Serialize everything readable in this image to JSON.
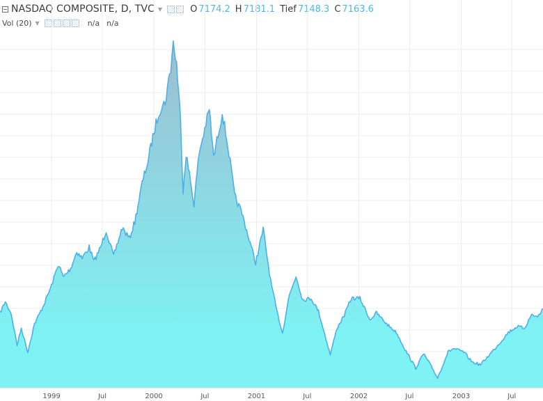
{
  "legend": {
    "symbol": "NASDAQ COMPOSITE, D, TVC",
    "ohlc": [
      {
        "label": "O",
        "value": "7174.2"
      },
      {
        "label": "H",
        "value": "7181.1"
      },
      {
        "label": "Tief",
        "value": "7148.3"
      },
      {
        "label": "C",
        "value": "7163.6"
      }
    ],
    "volume_title": "Vol (20)",
    "volume_values": [
      "n/a",
      "n/a"
    ]
  },
  "colors": {
    "line": "#4cb0ea",
    "fill_top": "#9cc0d2",
    "fill_bottom": "#7ef2f4",
    "grid": "#ececec",
    "text": "#555555"
  },
  "chart_data": {
    "type": "area",
    "title": "NASDAQ COMPOSITE, D, TVC",
    "xlabel": "",
    "ylabel": "",
    "x_tick_labels": [
      "1999",
      "Jul",
      "2000",
      "Jul",
      "2001",
      "Jul",
      "2002",
      "Jul",
      "2003",
      "Jul"
    ],
    "x_tick_dates": [
      "1999-01-01",
      "1999-07-01",
      "2000-01-01",
      "2000-07-01",
      "2001-01-01",
      "2001-07-01",
      "2002-01-01",
      "2002-07-01",
      "2003-01-01",
      "2003-07-01"
    ],
    "x_range": [
      "1998-07-01",
      "2003-10-20"
    ],
    "y_range": [
      1000,
      5200
    ],
    "grid": true,
    "series": [
      {
        "points": [
          [
            "1998-07-01",
            1880
          ],
          [
            "1998-07-20",
            2010
          ],
          [
            "1998-08-10",
            1870
          ],
          [
            "1998-08-31",
            1500
          ],
          [
            "1998-09-15",
            1700
          ],
          [
            "1998-10-08",
            1420
          ],
          [
            "1998-11-01",
            1750
          ],
          [
            "1998-12-01",
            1950
          ],
          [
            "1999-01-01",
            2200
          ],
          [
            "1999-01-25",
            2450
          ],
          [
            "1999-02-12",
            2300
          ],
          [
            "1999-03-10",
            2400
          ],
          [
            "1999-04-01",
            2600
          ],
          [
            "1999-04-20",
            2520
          ],
          [
            "1999-05-15",
            2650
          ],
          [
            "1999-06-01",
            2480
          ],
          [
            "1999-06-25",
            2650
          ],
          [
            "1999-07-15",
            2850
          ],
          [
            "1999-08-10",
            2540
          ],
          [
            "1999-09-10",
            2880
          ],
          [
            "1999-10-05",
            2750
          ],
          [
            "1999-10-25",
            2950
          ],
          [
            "1999-11-20",
            3400
          ],
          [
            "1999-12-10",
            3650
          ],
          [
            "2000-01-01",
            4000
          ],
          [
            "2000-01-20",
            4250
          ],
          [
            "2000-02-10",
            4350
          ],
          [
            "2000-03-01",
            4750
          ],
          [
            "2000-03-10",
            5048
          ],
          [
            "2000-03-22",
            4800
          ],
          [
            "2000-04-05",
            4150
          ],
          [
            "2000-04-14",
            3320
          ],
          [
            "2000-04-25",
            3750
          ],
          [
            "2000-05-23",
            3160
          ],
          [
            "2000-06-10",
            3750
          ],
          [
            "2000-07-17",
            4270
          ],
          [
            "2000-08-01",
            3700
          ],
          [
            "2000-09-01",
            4230
          ],
          [
            "2000-09-25",
            3750
          ],
          [
            "2000-10-15",
            3250
          ],
          [
            "2000-11-10",
            3050
          ],
          [
            "2000-12-05",
            2750
          ],
          [
            "2000-12-29",
            2470
          ],
          [
            "2001-01-25",
            2860
          ],
          [
            "2001-02-20",
            2260
          ],
          [
            "2001-03-15",
            1890
          ],
          [
            "2001-04-04",
            1640
          ],
          [
            "2001-04-25",
            2050
          ],
          [
            "2001-05-22",
            2310
          ],
          [
            "2001-06-15",
            2030
          ],
          [
            "2001-07-15",
            2050
          ],
          [
            "2001-08-10",
            1900
          ],
          [
            "2001-09-21",
            1390
          ],
          [
            "2001-10-15",
            1700
          ],
          [
            "2001-11-10",
            1850
          ],
          [
            "2001-12-05",
            2050
          ],
          [
            "2002-01-05",
            2050
          ],
          [
            "2002-02-10",
            1800
          ],
          [
            "2002-03-05",
            1880
          ],
          [
            "2002-04-10",
            1750
          ],
          [
            "2002-05-15",
            1650
          ],
          [
            "2002-06-15",
            1450
          ],
          [
            "2002-07-23",
            1230
          ],
          [
            "2002-08-20",
            1400
          ],
          [
            "2002-09-20",
            1230
          ],
          [
            "2002-10-09",
            1115
          ],
          [
            "2002-11-15",
            1420
          ],
          [
            "2002-12-05",
            1460
          ],
          [
            "2003-01-10",
            1420
          ],
          [
            "2003-02-10",
            1300
          ],
          [
            "2003-03-11",
            1270
          ],
          [
            "2003-04-15",
            1400
          ],
          [
            "2003-05-20",
            1530
          ],
          [
            "2003-06-18",
            1650
          ],
          [
            "2003-07-20",
            1720
          ],
          [
            "2003-08-15",
            1700
          ],
          [
            "2003-09-10",
            1860
          ],
          [
            "2003-10-01",
            1830
          ],
          [
            "2003-10-20",
            1930
          ]
        ]
      }
    ]
  }
}
